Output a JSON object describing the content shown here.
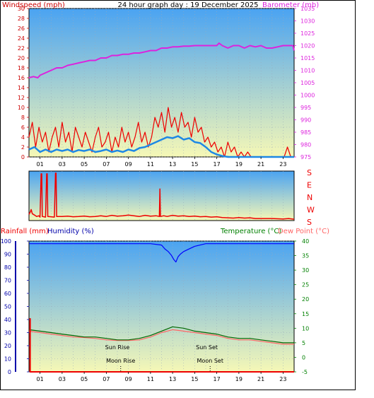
{
  "title": "24 hour graph day : 19 December 2025",
  "colors": {
    "wind_axis": "#cc0000",
    "baro_axis": "#dd22dd",
    "baro_line": "#dd22dd",
    "wind_line": "#ee0000",
    "gust_line": "#1e88e5",
    "dir_line": "#ee0000",
    "rain": "#ee0000",
    "humidity": "#0000ff",
    "humidity_axis": "#0000aa",
    "temperature": "#006600",
    "dewpoint": "#ff6666",
    "temp_axis": "#008000",
    "sky_top": "#4aa3f2",
    "sky_bottom": "#f6f8b6"
  },
  "chart_data": [
    {
      "type": "line",
      "name": "wind_barometer",
      "y_left_label": "Windspeed (mph)",
      "y_right_label": "Barometer (mb)",
      "ylim_left": [
        0,
        30
      ],
      "ylim_right": [
        975,
        1035
      ],
      "left_ticks": [
        0,
        2,
        4,
        6,
        8,
        10,
        12,
        14,
        16,
        18,
        20,
        22,
        24,
        26,
        28,
        30
      ],
      "right_ticks": [
        975,
        980,
        985,
        990,
        995,
        1000,
        1005,
        1010,
        1015,
        1020,
        1025,
        1030,
        1035
      ],
      "x_ticks": [
        "01",
        "03",
        "05",
        "07",
        "09",
        "11",
        "13",
        "15",
        "17",
        "19",
        "21",
        "23"
      ],
      "xlim_hours": [
        0,
        24
      ],
      "grid": true,
      "series": [
        {
          "name": "Barometer (mb)",
          "axis": "right",
          "x": [
            0,
            0.4,
            0.8,
            1.0,
            1.5,
            2.0,
            2.5,
            3.0,
            3.5,
            4.0,
            4.5,
            5.0,
            5.5,
            6.0,
            6.5,
            7.0,
            7.5,
            8.0,
            8.5,
            9.0,
            9.5,
            10.0,
            10.5,
            11.0,
            11.5,
            12.0,
            12.5,
            13.0,
            13.5,
            14.0,
            14.5,
            15.0,
            15.5,
            16.0,
            16.5,
            17.0,
            17.2,
            17.5,
            18.0,
            18.5,
            19.0,
            19.5,
            20.0,
            20.5,
            21.0,
            21.5,
            22.0,
            22.5,
            23.0,
            23.5,
            23.9,
            24.0
          ],
          "y": [
            1007,
            1007.5,
            1007,
            1008,
            1009,
            1010,
            1011,
            1011,
            1012,
            1012.5,
            1013,
            1013.5,
            1014,
            1014,
            1015,
            1015,
            1016,
            1016,
            1016.5,
            1016.5,
            1017,
            1017,
            1017.5,
            1018,
            1018,
            1019,
            1019,
            1019.5,
            1019.5,
            1019.8,
            1019.8,
            1020,
            1020,
            1020,
            1020,
            1020,
            1021,
            1020,
            1019,
            1020,
            1020,
            1019,
            1020,
            1019.5,
            1020,
            1019,
            1019,
            1019.5,
            1020,
            1020,
            1020,
            1018
          ]
        },
        {
          "name": "Windspeed",
          "axis": "left",
          "x": [
            0,
            0.3,
            0.6,
            0.9,
            1.2,
            1.5,
            1.8,
            2.1,
            2.4,
            2.7,
            3.0,
            3.3,
            3.6,
            3.9,
            4.2,
            4.5,
            4.8,
            5.1,
            5.4,
            5.7,
            6.0,
            6.3,
            6.6,
            6.9,
            7.2,
            7.5,
            7.8,
            8.1,
            8.4,
            8.7,
            9.0,
            9.3,
            9.6,
            9.9,
            10.2,
            10.5,
            10.8,
            11.1,
            11.4,
            11.7,
            12.0,
            12.3,
            12.6,
            12.9,
            13.2,
            13.5,
            13.8,
            14.1,
            14.4,
            14.7,
            15.0,
            15.3,
            15.6,
            15.9,
            16.2,
            16.5,
            16.8,
            17.1,
            17.4,
            17.7,
            18.0,
            18.3,
            18.6,
            18.9,
            19.2,
            19.5,
            19.8,
            20.1,
            20.4,
            20.7,
            21.0,
            21.3,
            21.6,
            21.9,
            22.2,
            22.5,
            22.8,
            23.1,
            23.4,
            23.7,
            24.0
          ],
          "y": [
            4,
            7,
            2,
            6,
            3,
            5,
            1,
            4,
            6,
            2,
            7,
            3,
            5,
            1,
            6,
            4,
            2,
            5,
            3,
            1,
            4,
            6,
            2,
            3,
            5,
            1,
            4,
            2,
            6,
            3,
            5,
            2,
            4,
            7,
            3,
            5,
            2,
            4,
            8,
            6,
            9,
            5,
            10,
            6,
            8,
            5,
            9,
            6,
            7,
            4,
            8,
            5,
            6,
            3,
            4,
            2,
            3,
            1,
            2,
            0,
            3,
            1,
            2,
            0,
            1,
            0,
            1,
            0,
            0,
            0,
            0,
            0,
            0,
            0,
            0,
            0,
            0,
            0,
            2,
            0,
            0
          ]
        },
        {
          "name": "Average wind",
          "axis": "left",
          "x": [
            0,
            0.5,
            1.0,
            1.5,
            2.0,
            2.5,
            3.0,
            3.5,
            4.0,
            4.5,
            5.0,
            5.5,
            6.0,
            6.5,
            7.0,
            7.5,
            8.0,
            8.5,
            9.0,
            9.5,
            10.0,
            10.5,
            11.0,
            11.5,
            12.0,
            12.5,
            13.0,
            13.5,
            14.0,
            14.5,
            15.0,
            15.5,
            16.0,
            16.5,
            17.0,
            17.5,
            18.0,
            19.0,
            20.0,
            21.0,
            22.0,
            23.0,
            24.0
          ],
          "y": [
            1.5,
            2,
            1,
            1.5,
            1,
            1.5,
            1.2,
            1.5,
            1,
            1.4,
            1.2,
            1.5,
            1,
            1.2,
            1.5,
            1,
            1.3,
            1,
            1.5,
            1.2,
            1.8,
            2,
            2.5,
            3,
            3.5,
            4,
            3.8,
            4.2,
            3.5,
            3.8,
            3,
            2.8,
            2,
            1,
            0.5,
            0.2,
            0,
            0,
            0,
            0,
            0,
            0,
            0
          ]
        }
      ]
    },
    {
      "type": "line",
      "name": "wind_direction",
      "y_right_labels": [
        "S",
        "E",
        "N",
        "W",
        "S"
      ],
      "ylim": [
        0,
        360
      ],
      "xlim_hours": [
        0,
        24
      ],
      "series": [
        {
          "name": "Wind direction",
          "x": [
            0,
            0.1,
            0.2,
            0.3,
            0.5,
            0.7,
            0.9,
            1.0,
            1.1,
            1.15,
            1.2,
            1.5,
            1.6,
            1.65,
            1.7,
            2.0,
            2.3,
            2.4,
            2.45,
            2.5,
            3.0,
            3.5,
            4.0,
            4.5,
            5.0,
            5.5,
            6.0,
            6.5,
            7.0,
            7.5,
            8.0,
            8.5,
            9.0,
            9.5,
            10.0,
            10.5,
            11.0,
            11.5,
            11.8,
            11.85,
            11.9,
            12.2,
            12.5,
            13.0,
            13.5,
            14.0,
            14.5,
            15.0,
            15.5,
            16.0,
            16.5,
            17.0,
            17.5,
            18.0,
            18.5,
            19.0,
            19.5,
            20.0,
            20.5,
            21.0,
            22.0,
            23.0,
            23.5,
            24.0
          ],
          "y": [
            45,
            60,
            80,
            50,
            40,
            30,
            35,
            25,
            340,
            340,
            30,
            25,
            340,
            340,
            30,
            28,
            25,
            345,
            345,
            30,
            30,
            32,
            28,
            30,
            33,
            28,
            30,
            35,
            30,
            38,
            32,
            35,
            40,
            35,
            30,
            38,
            32,
            35,
            30,
            230,
            30,
            35,
            30,
            38,
            32,
            35,
            30,
            33,
            28,
            30,
            25,
            28,
            22,
            20,
            18,
            22,
            18,
            20,
            15,
            15,
            15,
            12,
            15,
            10
          ]
        }
      ]
    },
    {
      "type": "line",
      "name": "temp_humidity_rain",
      "y_left_label_rain": "Rainfall (mm)",
      "y_left_label_hum": "Humidity (%)",
      "y_right_label_temp": "Temperature (°C)",
      "y_right_label_dew": "Dew Point (°C)",
      "left_ticks": [
        0,
        10,
        20,
        30,
        40,
        50,
        60,
        70,
        80,
        90,
        100
      ],
      "right_ticks": [
        -5,
        0,
        5,
        10,
        15,
        20,
        25,
        30,
        35,
        40
      ],
      "ylim_left": [
        0,
        100
      ],
      "ylim_right": [
        -5,
        40
      ],
      "x_ticks": [
        "01",
        "03",
        "05",
        "07",
        "09",
        "11",
        "13",
        "15",
        "17",
        "19",
        "21",
        "23"
      ],
      "xlim_hours": [
        0,
        24
      ],
      "grid": true,
      "annotations": {
        "sun_rise": {
          "label": "Sun Rise",
          "hour": 8.0
        },
        "sun_set": {
          "label": "Sun Set",
          "hour": 16.1
        },
        "moon_rise": {
          "label": "Moon Rise",
          "hour": 8.3
        },
        "moon_set": {
          "label": "Moon Set",
          "hour": 16.4
        }
      },
      "series": [
        {
          "name": "Humidity (%)",
          "axis": "left",
          "x": [
            0,
            6,
            11,
            12.0,
            12.3,
            12.6,
            12.9,
            13.1,
            13.3,
            13.5,
            13.7,
            14.0,
            14.5,
            15.0,
            15.5,
            16.0,
            17.0,
            20,
            24
          ],
          "y": [
            98,
            98,
            98,
            97,
            94,
            92,
            89,
            86,
            84,
            88,
            90,
            92,
            94,
            96,
            97,
            98,
            98,
            98,
            98
          ]
        },
        {
          "name": "Temperature (°C)",
          "axis": "right",
          "x": [
            0,
            1,
            2,
            3,
            4,
            5,
            6,
            7,
            8,
            9,
            10,
            11,
            12,
            13,
            14,
            15,
            16,
            17,
            18,
            19,
            20,
            21,
            22,
            23,
            24
          ],
          "y": [
            9.5,
            9,
            8.5,
            8,
            7.5,
            7,
            7,
            6.5,
            6,
            6,
            6.5,
            7.5,
            9,
            10.5,
            10,
            9,
            8.5,
            8,
            7,
            6.5,
            6.5,
            6,
            5.5,
            5,
            5
          ]
        },
        {
          "name": "Dew Point (°C)",
          "axis": "right",
          "x": [
            0,
            1,
            2,
            3,
            4,
            5,
            6,
            7,
            8,
            9,
            10,
            11,
            12,
            13,
            14,
            15,
            16,
            17,
            18,
            19,
            20,
            21,
            22,
            23,
            24
          ],
          "y": [
            9,
            8.5,
            8,
            7.5,
            7,
            6.8,
            6.5,
            6,
            5.8,
            5.8,
            6,
            7,
            8.5,
            9.5,
            9,
            8.5,
            8,
            7.5,
            6.5,
            6,
            6,
            5.5,
            5,
            4.5,
            4.5
          ]
        },
        {
          "name": "Rainfall (mm)",
          "axis": "left",
          "x": [
            0.1,
            0.1,
            0.15,
            24
          ],
          "y": [
            41,
            0,
            0,
            0
          ]
        }
      ]
    }
  ]
}
